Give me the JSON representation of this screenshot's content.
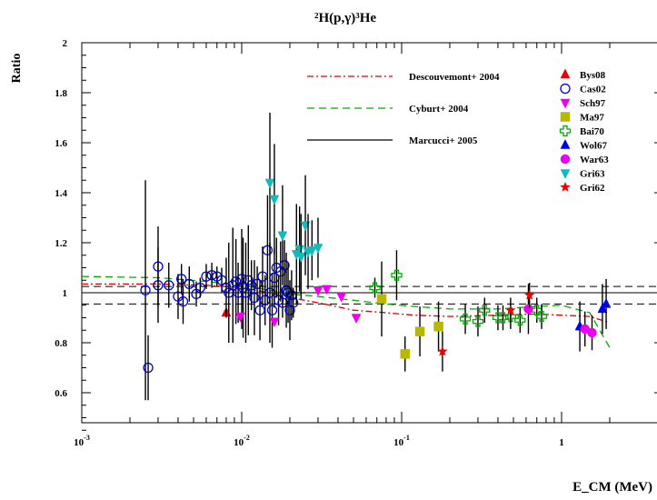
{
  "chart_data": {
    "type": "scatter",
    "title": "²H(p,γ)³He",
    "xlabel": "E_CM (MeV)",
    "ylabel": "Ratio",
    "xscale": "log",
    "xlim": [
      0.001,
      2.5
    ],
    "ylim": [
      0.45,
      2.0
    ],
    "y_ticks": [
      "0.6",
      "0.8",
      "1",
      "1.2",
      "1.4",
      "1.6",
      "1.8",
      "2"
    ],
    "x_ticks": [
      {
        "value": 0.001,
        "base": "10",
        "exp": "-3"
      },
      {
        "value": 0.01,
        "base": "10",
        "exp": "-2"
      },
      {
        "value": 0.1,
        "base": "10",
        "exp": "-1"
      },
      {
        "value": 1,
        "base": "1",
        "exp": ""
      }
    ],
    "reference_lines": [
      {
        "y": 1.0,
        "style": "solid"
      },
      {
        "y": 1.025,
        "style": "dashed"
      },
      {
        "y": 0.955,
        "style": "dashed"
      }
    ],
    "curves": [
      {
        "name": "Descouvemont+ 2004",
        "color": "#dd0000",
        "dash": "7,3,2,3",
        "points": [
          [
            0.001,
            1.035
          ],
          [
            0.003,
            1.035
          ],
          [
            0.006,
            1.03
          ],
          [
            0.01,
            1.02
          ],
          [
            0.015,
            1.0
          ],
          [
            0.02,
            0.98
          ],
          [
            0.03,
            0.96
          ],
          [
            0.05,
            0.93
          ],
          [
            0.08,
            0.92
          ],
          [
            0.12,
            0.91
          ],
          [
            0.2,
            0.905
          ],
          [
            0.4,
            0.91
          ],
          [
            0.7,
            0.915
          ],
          [
            1.0,
            0.91
          ],
          [
            1.5,
            0.905
          ],
          [
            2.0,
            0.88
          ]
        ]
      },
      {
        "name": "Cyburt+ 2004",
        "color": "#00aa00",
        "dash": "8,5",
        "points": [
          [
            0.001,
            1.065
          ],
          [
            0.003,
            1.06
          ],
          [
            0.006,
            1.045
          ],
          [
            0.01,
            1.03
          ],
          [
            0.015,
            1.01
          ],
          [
            0.02,
            0.995
          ],
          [
            0.03,
            0.985
          ],
          [
            0.05,
            0.97
          ],
          [
            0.08,
            0.955
          ],
          [
            0.12,
            0.945
          ],
          [
            0.2,
            0.935
          ],
          [
            0.4,
            0.935
          ],
          [
            0.7,
            0.945
          ],
          [
            1.0,
            0.95
          ],
          [
            1.5,
            0.92
          ],
          [
            2.0,
            0.78
          ]
        ]
      },
      {
        "name": "Marcucci+ 2005",
        "color": "#000000",
        "dash": "",
        "points": [
          [
            0.021,
            0.97
          ],
          [
            0.021,
            1.0
          ],
          [
            0.025,
            1.0
          ]
        ]
      }
    ],
    "datasets": [
      {
        "name": "Bys08",
        "marker": "triangle-up",
        "color": "#ee0000",
        "filled": true,
        "points": [
          [
            0.008,
            0.92,
            0.0
          ]
        ]
      },
      {
        "name": "Cas02",
        "marker": "circle",
        "color": "#0000cc",
        "filled": false,
        "points": [
          [
            0.0025,
            1.01,
            0.44
          ],
          [
            0.0026,
            0.7,
            0.13
          ],
          [
            0.003,
            1.03,
            0.15
          ],
          [
            0.003,
            1.105,
            0.16
          ],
          [
            0.0035,
            1.03,
            0.09
          ],
          [
            0.004,
            0.985,
            0.09
          ],
          [
            0.0042,
            1.055,
            0.06
          ],
          [
            0.0043,
            0.965,
            0.09
          ],
          [
            0.0047,
            1.035,
            0.07
          ],
          [
            0.0052,
            0.995,
            0.05
          ],
          [
            0.0055,
            1.02,
            0.04
          ],
          [
            0.006,
            1.065,
            0.05
          ],
          [
            0.0065,
            1.07,
            0.05
          ],
          [
            0.007,
            1.065,
            0.04
          ],
          [
            0.0075,
            1.05,
            0.05
          ],
          [
            0.008,
            1.02,
            0.12
          ],
          [
            0.0083,
            1.0,
            0.2
          ],
          [
            0.0088,
            1.03,
            0.23
          ],
          [
            0.0092,
            1.045,
            0.17
          ],
          [
            0.0095,
            1.0,
            0.12
          ],
          [
            0.01,
            1.055,
            0.2
          ],
          [
            0.0102,
            1.02,
            0.2
          ],
          [
            0.0106,
            1.0,
            0.2
          ],
          [
            0.011,
            1.05,
            0.22
          ],
          [
            0.0115,
            1.03,
            0.1
          ],
          [
            0.012,
            0.98,
            0.15
          ],
          [
            0.0125,
            1.035,
            0.07
          ],
          [
            0.013,
            0.93,
            0.12
          ],
          [
            0.0135,
            1.065,
            0.12
          ],
          [
            0.014,
            0.97,
            0.1
          ],
          [
            0.0145,
            1.17,
            0.22
          ],
          [
            0.015,
            1.0,
            0.2
          ],
          [
            0.0155,
            0.93,
            0.15
          ],
          [
            0.016,
            1.06,
            0.12
          ],
          [
            0.0165,
            1.1,
            0.12
          ],
          [
            0.017,
            0.97,
            0.1
          ],
          [
            0.0175,
            1.085,
            0.12
          ],
          [
            0.018,
            0.96,
            0.06
          ],
          [
            0.0185,
            1.11,
            0.1
          ],
          [
            0.019,
            1.01,
            0.15
          ],
          [
            0.0195,
            1.0,
            0.12
          ],
          [
            0.02,
            0.93,
            0.12
          ],
          [
            0.0205,
            0.99,
            0.1
          ],
          [
            0.021,
            0.96,
            0.06
          ]
        ]
      },
      {
        "name": "Sch97",
        "marker": "triangle-down",
        "color": "#ee00ee",
        "filled": true,
        "points": [
          [
            0.0098,
            0.905,
            0.0
          ],
          [
            0.016,
            0.885,
            0.0
          ],
          [
            0.03,
            1.01,
            0.0
          ],
          [
            0.034,
            1.015,
            0.0
          ],
          [
            0.042,
            0.985,
            0.0
          ],
          [
            0.052,
            0.9,
            0.0
          ]
        ]
      },
      {
        "name": "Ma97",
        "marker": "square",
        "color": "#b8b800",
        "filled": true,
        "points": [
          [
            0.075,
            0.975,
            0.15
          ],
          [
            0.105,
            0.755,
            0.07
          ],
          [
            0.13,
            0.845,
            0.1
          ],
          [
            0.17,
            0.865,
            0.1
          ]
        ]
      },
      {
        "name": "Bai70",
        "marker": "open-cross",
        "color": "#00aa00",
        "filled": false,
        "points": [
          [
            0.068,
            1.02,
            0.04
          ],
          [
            0.093,
            1.07,
            0.1
          ],
          [
            0.25,
            0.895,
            0.06
          ],
          [
            0.3,
            0.885,
            0.06
          ],
          [
            0.33,
            0.93,
            0.05
          ],
          [
            0.4,
            0.9,
            0.05
          ],
          [
            0.43,
            0.9,
            0.05
          ],
          [
            0.48,
            0.905,
            0.05
          ],
          [
            0.55,
            0.89,
            0.05
          ],
          [
            0.7,
            0.93,
            0.05
          ],
          [
            0.75,
            0.905,
            0.05
          ]
        ]
      },
      {
        "name": "Wol67",
        "marker": "triangle-up",
        "color": "#0000ee",
        "filled": true,
        "points": [
          [
            1.3,
            0.865,
            0.1
          ],
          [
            1.8,
            0.935,
            0.1
          ],
          [
            1.9,
            0.955,
            0.1
          ]
        ]
      },
      {
        "name": "War63",
        "marker": "circle",
        "color": "#ee00ee",
        "filled": true,
        "points": [
          [
            0.62,
            0.935,
            0.1
          ],
          [
            1.4,
            0.855,
            0.07
          ],
          [
            1.55,
            0.84,
            0.07
          ]
        ]
      },
      {
        "name": "Gri63",
        "marker": "triangle-down",
        "color": "#11bbbb",
        "filled": true,
        "points": [
          [
            0.015,
            1.44,
            0.28
          ],
          [
            0.016,
            1.375,
            0.22
          ],
          [
            0.018,
            1.23,
            0.2
          ],
          [
            0.022,
            1.155,
            0.2
          ],
          [
            0.023,
            1.175,
            0.17
          ],
          [
            0.0235,
            1.145,
            0.17
          ],
          [
            0.025,
            1.27,
            0.2
          ],
          [
            0.026,
            1.165,
            0.15
          ],
          [
            0.0275,
            1.17,
            0.12
          ],
          [
            0.03,
            1.18,
            0.12
          ]
        ]
      },
      {
        "name": "Gri62",
        "marker": "star",
        "color": "#ee0000",
        "filled": true,
        "points": [
          [
            0.18,
            0.765,
            0.08
          ],
          [
            0.48,
            0.93,
            0.05
          ],
          [
            0.63,
            0.99,
            0.05
          ]
        ]
      }
    ]
  }
}
